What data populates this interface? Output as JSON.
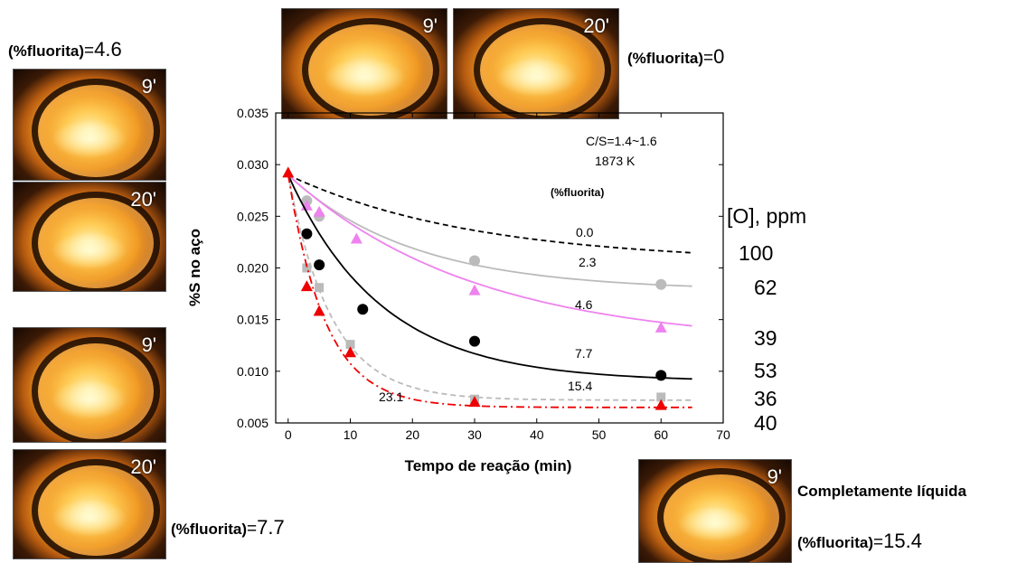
{
  "photos": [
    {
      "id": "top-9",
      "label": "9'"
    },
    {
      "id": "top-20",
      "label": "20'"
    },
    {
      "id": "l1-9",
      "label": "9'"
    },
    {
      "id": "l1-20",
      "label": "20'"
    },
    {
      "id": "l2-9",
      "label": "9'"
    },
    {
      "id": "l2-20",
      "label": "20'"
    },
    {
      "id": "br-9",
      "label": "9'"
    }
  ],
  "fluorite_labels": {
    "key": "(%fluorita)",
    "eq": "=",
    "top_left": "4.6",
    "top_right": "0",
    "bottom_left": "7.7",
    "bottom_right": "15.4"
  },
  "completely_liquid": "Completamente líquida",
  "oxygen": {
    "title": "[O], ppm",
    "values": [
      "100",
      "62",
      "39",
      "53",
      "36",
      "40"
    ]
  },
  "chart_data": {
    "type": "scatter",
    "xlabel": "Tempo de reação (min)",
    "ylabel": "%S no aço",
    "xlim": [
      -2,
      70
    ],
    "ylim": [
      0.005,
      0.035
    ],
    "xticks": [
      0,
      10,
      20,
      30,
      40,
      50,
      60,
      70
    ],
    "yticks": [
      "0.005",
      "0.010",
      "0.015",
      "0.020",
      "0.025",
      "0.030",
      "0.035"
    ],
    "annotations": [
      "C/S=1.4~1.6",
      "1873 K",
      "(%fluorita)"
    ],
    "series": [
      {
        "name": "0.0",
        "color": "#000000",
        "marker": "none",
        "line": "dashed",
        "points": [],
        "curve": {
          "start": 0.029,
          "end": 0.0205,
          "tau": 30
        }
      },
      {
        "name": "2.3",
        "color": "#bbbbbb",
        "marker": "circle",
        "line": "solid",
        "points": [
          [
            3,
            0.0265
          ],
          [
            5,
            0.025
          ],
          [
            30,
            0.0207
          ],
          [
            60,
            0.0184
          ]
        ],
        "curve": {
          "start": 0.029,
          "end": 0.0178,
          "tau": 20
        }
      },
      {
        "name": "4.6",
        "color": "#ee82ee",
        "marker": "triangle",
        "line": "solid",
        "points": [
          [
            3,
            0.026
          ],
          [
            5,
            0.0254
          ],
          [
            11,
            0.0228
          ],
          [
            30,
            0.0178
          ],
          [
            60,
            0.0142
          ]
        ],
        "curve": {
          "start": 0.029,
          "end": 0.0125,
          "tau": 30
        }
      },
      {
        "name": "7.7",
        "color": "#000000",
        "marker": "circle",
        "line": "solid",
        "points": [
          [
            3,
            0.0233
          ],
          [
            5,
            0.0203
          ],
          [
            12,
            0.016
          ],
          [
            30,
            0.0129
          ],
          [
            60,
            0.0096
          ]
        ],
        "curve": {
          "start": 0.029,
          "end": 0.009,
          "tau": 15
        }
      },
      {
        "name": "15.4",
        "color": "#bbbbbb",
        "marker": "square",
        "line": "dashed",
        "points": [
          [
            3,
            0.02
          ],
          [
            5,
            0.0181
          ],
          [
            10,
            0.0126
          ],
          [
            30,
            0.0073
          ],
          [
            60,
            0.0075
          ]
        ],
        "curve": {
          "start": 0.029,
          "end": 0.0072,
          "tau": 7
        }
      },
      {
        "name": "23.1",
        "color": "#ee0000",
        "marker": "triangle",
        "line": "dashdot",
        "points": [
          [
            0,
            0.0292
          ],
          [
            3,
            0.0182
          ],
          [
            5,
            0.0158
          ],
          [
            10,
            0.0118
          ],
          [
            30,
            0.007
          ],
          [
            60,
            0.0067
          ]
        ],
        "curve": {
          "start": 0.029,
          "end": 0.0065,
          "tau": 6
        }
      }
    ]
  }
}
